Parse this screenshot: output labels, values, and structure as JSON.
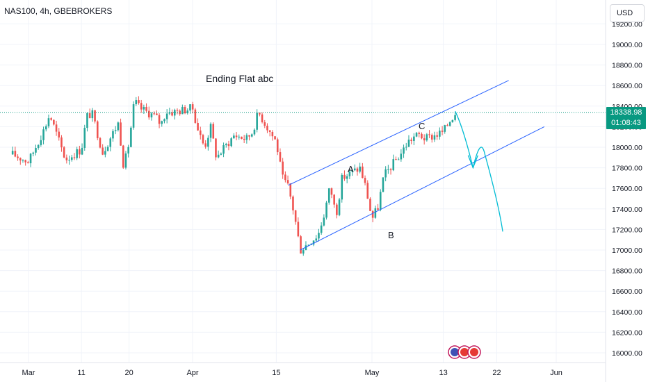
{
  "header": {
    "symbol_line": "NAS100, 4h, GBEBROKERS"
  },
  "currency_button": "USD",
  "last_price": {
    "price": "18338.98",
    "countdown": "01:08:43",
    "color": "#089981"
  },
  "colors": {
    "up": "#26a69a",
    "down": "#ef5350",
    "channel": "#2962ff",
    "projection": "#00bcd4",
    "grid": "#f0f3fa",
    "axis_text": "#131722"
  },
  "chart_data": {
    "type": "candlestick",
    "symbol": "NAS100",
    "interval": "4h",
    "broker": "GBEBROKERS",
    "ylim": [
      15900,
      19300
    ],
    "y_ticks": [
      "16000.00",
      "16200.00",
      "16400.00",
      "16600.00",
      "16800.00",
      "17000.00",
      "17200.00",
      "17400.00",
      "17600.00",
      "17800.00",
      "18000.00",
      "18200.00",
      "18400.00",
      "18600.00",
      "18800.00",
      "19000.00",
      "19200.00"
    ],
    "x_ticks": [
      "Mar",
      "11",
      "20",
      "Apr",
      "15",
      "May",
      "13",
      "22",
      "Jun"
    ],
    "annotations": [
      "Ending Flat abc",
      "A",
      "B",
      "C"
    ],
    "close_path": [
      {
        "date": "Feb 27",
        "price": 17930
      },
      {
        "date": "Mar 1",
        "price": 17860
      },
      {
        "date": "Mar 4",
        "price": 18180
      },
      {
        "date": "Mar 5",
        "price": 18320
      },
      {
        "date": "Mar 6",
        "price": 18170
      },
      {
        "date": "Mar 8",
        "price": 17880
      },
      {
        "date": "Mar 11",
        "price": 17980
      },
      {
        "date": "Mar 12",
        "price": 18300
      },
      {
        "date": "Mar 13",
        "price": 18330
      },
      {
        "date": "Mar 15",
        "price": 17950
      },
      {
        "date": "Mar 18",
        "price": 18240
      },
      {
        "date": "Mar 19",
        "price": 17800
      },
      {
        "date": "Mar 20",
        "price": 18050
      },
      {
        "date": "Mar 21",
        "price": 18450
      },
      {
        "date": "Mar 22",
        "price": 18380
      },
      {
        "date": "Mar 25",
        "price": 18300
      },
      {
        "date": "Mar 26",
        "price": 18220
      },
      {
        "date": "Mar 27",
        "price": 18350
      },
      {
        "date": "Mar 28",
        "price": 18340
      },
      {
        "date": "Apr 1",
        "price": 18380
      },
      {
        "date": "Apr 2",
        "price": 18150
      },
      {
        "date": "Apr 3",
        "price": 18000
      },
      {
        "date": "Apr 4",
        "price": 18200
      },
      {
        "date": "Apr 5",
        "price": 17900
      },
      {
        "date": "Apr 8",
        "price": 18120
      },
      {
        "date": "Apr 10",
        "price": 18080
      },
      {
        "date": "Apr 11",
        "price": 18150
      },
      {
        "date": "Apr 12",
        "price": 18340
      },
      {
        "date": "Apr 15",
        "price": 18050
      },
      {
        "date": "Apr 16",
        "price": 17700
      },
      {
        "date": "Apr 17",
        "price": 17610
      },
      {
        "date": "Apr 18",
        "price": 17350
      },
      {
        "date": "Apr 19",
        "price": 17000
      },
      {
        "date": "Apr 22",
        "price": 17150
      },
      {
        "date": "Apr 23",
        "price": 17350
      },
      {
        "date": "Apr 24",
        "price": 17620
      },
      {
        "date": "Apr 25",
        "price": 17340
      },
      {
        "date": "Apr 26",
        "price": 17700
      },
      {
        "date": "Apr 29",
        "price": 17800
      },
      {
        "date": "Apr 30",
        "price": 17600
      },
      {
        "date": "May 1",
        "price": 17300
      },
      {
        "date": "May 2",
        "price": 17420
      },
      {
        "date": "May 3",
        "price": 17720
      },
      {
        "date": "May 6",
        "price": 17950
      },
      {
        "date": "May 7",
        "price": 18050
      },
      {
        "date": "May 8",
        "price": 18100
      },
      {
        "date": "May 9",
        "price": 18120
      },
      {
        "date": "May 10",
        "price": 18080
      },
      {
        "date": "May 13",
        "price": 18150
      },
      {
        "date": "May 14",
        "price": 18250
      },
      {
        "date": "May 15",
        "price": 18339
      }
    ],
    "channel_lines": [
      {
        "from": {
          "date": "Apr 17",
          "price": 17630
        },
        "to": {
          "date": "May 24",
          "price": 18650
        }
      },
      {
        "from": {
          "date": "Apr 19",
          "price": 17000
        },
        "to": {
          "date": "May 30",
          "price": 18200
        }
      }
    ],
    "projection_path": [
      {
        "date": "May 15",
        "price": 18350
      },
      {
        "date": "May 18",
        "price": 17800
      },
      {
        "date": "May 20",
        "price": 17930
      },
      {
        "date": "May 23",
        "price": 17180
      }
    ]
  }
}
